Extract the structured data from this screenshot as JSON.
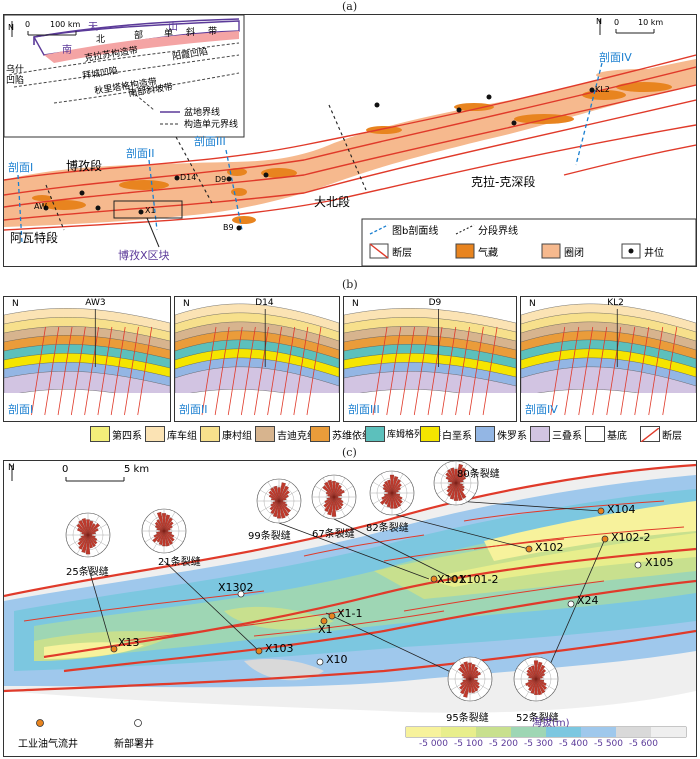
{
  "panel_labels": {
    "a": "(a)",
    "b": "(b)",
    "c": "(c)"
  },
  "map_a": {
    "north": "N",
    "inset_scale": "100 km",
    "inset_zero": "0",
    "main_scale": "10 km",
    "main_zero": "0",
    "inset_labels": {
      "tianshan": "天",
      "shan": "山",
      "nan": "南",
      "bei": "北",
      "bu": "部",
      "dan": "单",
      "xie": "斜",
      "dai": "带",
      "kela_belt": "克拉苏构造带",
      "baicheng": "拜城凹陷",
      "qiulitage": "秋里塔格构造带",
      "yangxia": "阳霞凹陷",
      "wushi": "乌什凹陷",
      "south_slope": "南部斜坡带"
    },
    "inset_legend": {
      "basin": "盆地界线",
      "unit": "构造单元界线"
    },
    "section_labels": {
      "s1": "剖面I",
      "s2": "剖面II",
      "s3": "剖面III",
      "s4": "剖面IV"
    },
    "segments": {
      "bozi": "博孜段",
      "awate": "阿瓦特段",
      "dabei": "大北段",
      "kela": "克拉-克深段"
    },
    "block": "博孜X区块",
    "wells": {
      "aw": "AW",
      "x1": "X1",
      "d14": "D14",
      "d9": "D9",
      "b9": "B9",
      "kl2": "KL2"
    },
    "legend": {
      "section_line": "图b剖面线",
      "segment_boundary": "分段界线",
      "fault": "断层",
      "gas": "气藏",
      "trap": "圈闭",
      "well": "井位"
    }
  },
  "sections_b": {
    "north": "N",
    "items": [
      {
        "label": "剖面I",
        "well": "AW3"
      },
      {
        "label": "剖面II",
        "well": "D14"
      },
      {
        "label": "剖面III",
        "well": "D9"
      },
      {
        "label": "剖面IV",
        "well": "KL2"
      }
    ],
    "legend": [
      {
        "name": "第四系",
        "color": "#f3ef7a"
      },
      {
        "name": "库车组",
        "color": "#fbe3b4"
      },
      {
        "name": "康村组",
        "color": "#f7e08c"
      },
      {
        "name": "吉迪克组",
        "color": "#d7b48e"
      },
      {
        "name": "苏维依组",
        "color": "#ea9c3a"
      },
      {
        "name": "库姆格列木群",
        "color": "#5cc0bc"
      },
      {
        "name": "白垩系",
        "color": "#f5e500"
      },
      {
        "name": "侏罗系",
        "color": "#93b6e4"
      },
      {
        "name": "三叠系",
        "color": "#d2c4e2"
      },
      {
        "name": "基底",
        "color": "#ffffff"
      },
      {
        "name": "断层",
        "color": "#e03a2a"
      }
    ]
  },
  "map_c": {
    "north": "N",
    "scale_zero": "0",
    "scale": "5 km",
    "wells": {
      "x104": "X104",
      "x102": "X102",
      "x102_2": "X102-2",
      "x105": "X105",
      "x101": "X101",
      "x101_2": "X101-2",
      "x1_1": "X1-1",
      "x1": "X1",
      "x24": "X24",
      "x1302": "X1302",
      "x13": "X13",
      "x103": "X103",
      "x10": "X10"
    },
    "roses": {
      "r25": "25条裂缝",
      "r21": "21条裂缝",
      "r99": "99条裂缝",
      "r67": "67条裂缝",
      "r82": "82条裂缝",
      "r80": "80条裂缝",
      "r95": "95条裂缝",
      "r52": "52条裂缝"
    },
    "legend": {
      "industrial": "工业油气流井",
      "new": "新部署井",
      "elev_title": "海拔(m)",
      "ticks": [
        "-5 000",
        "-5 100",
        "-5 200",
        "-5 300",
        "-5 400",
        "-5 500",
        "-5 600"
      ],
      "colors": [
        "#f7f29c",
        "#e8ee8c",
        "#c8e08e",
        "#9ed6b4",
        "#7cc7e0",
        "#9fc8ec",
        "#d9d9d9",
        "#efefef"
      ]
    }
  }
}
